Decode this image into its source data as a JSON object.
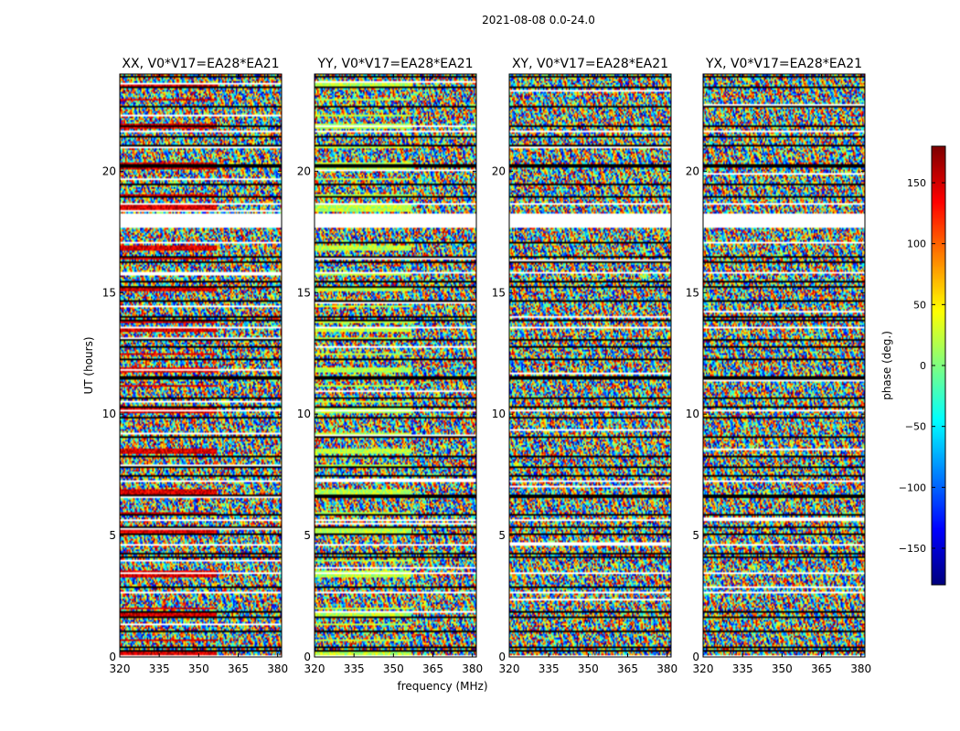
{
  "chart_data": {
    "type": "heatmap",
    "suptitle": "2021-08-08 0.0-24.0",
    "xlabel": "frequency (MHz)",
    "ylabel": "UT (hours)",
    "xlim": [
      320,
      381.5
    ],
    "ylim": [
      0,
      24
    ],
    "xticks": [
      320,
      335,
      350,
      365,
      380
    ],
    "yticks": [
      0,
      5,
      10,
      15,
      20
    ],
    "panels": [
      {
        "title": "XX, V0*V17=EA28*EA21",
        "coherent_phase": 150
      },
      {
        "title": "YY, V0*V17=EA28*EA21",
        "coherent_phase": 20
      },
      {
        "title": "XY, V0*V17=EA28*EA21",
        "coherent_phase": null
      },
      {
        "title": "YX, V0*V17=EA28*EA21",
        "coherent_phase": null
      }
    ],
    "colorbar": {
      "label": "phase (deg.)",
      "range": [
        -180,
        180
      ],
      "ticks": [
        -150,
        -100,
        -50,
        0,
        50,
        100,
        150
      ],
      "colormap": "jet"
    },
    "flagged_hours": [
      2.6,
      3.4,
      4.6,
      5.6,
      7.2,
      10.1,
      13.5,
      15.8,
      17.7,
      18.6,
      21.6
    ],
    "data_gap_hours": [
      17.7,
      18.2
    ]
  }
}
